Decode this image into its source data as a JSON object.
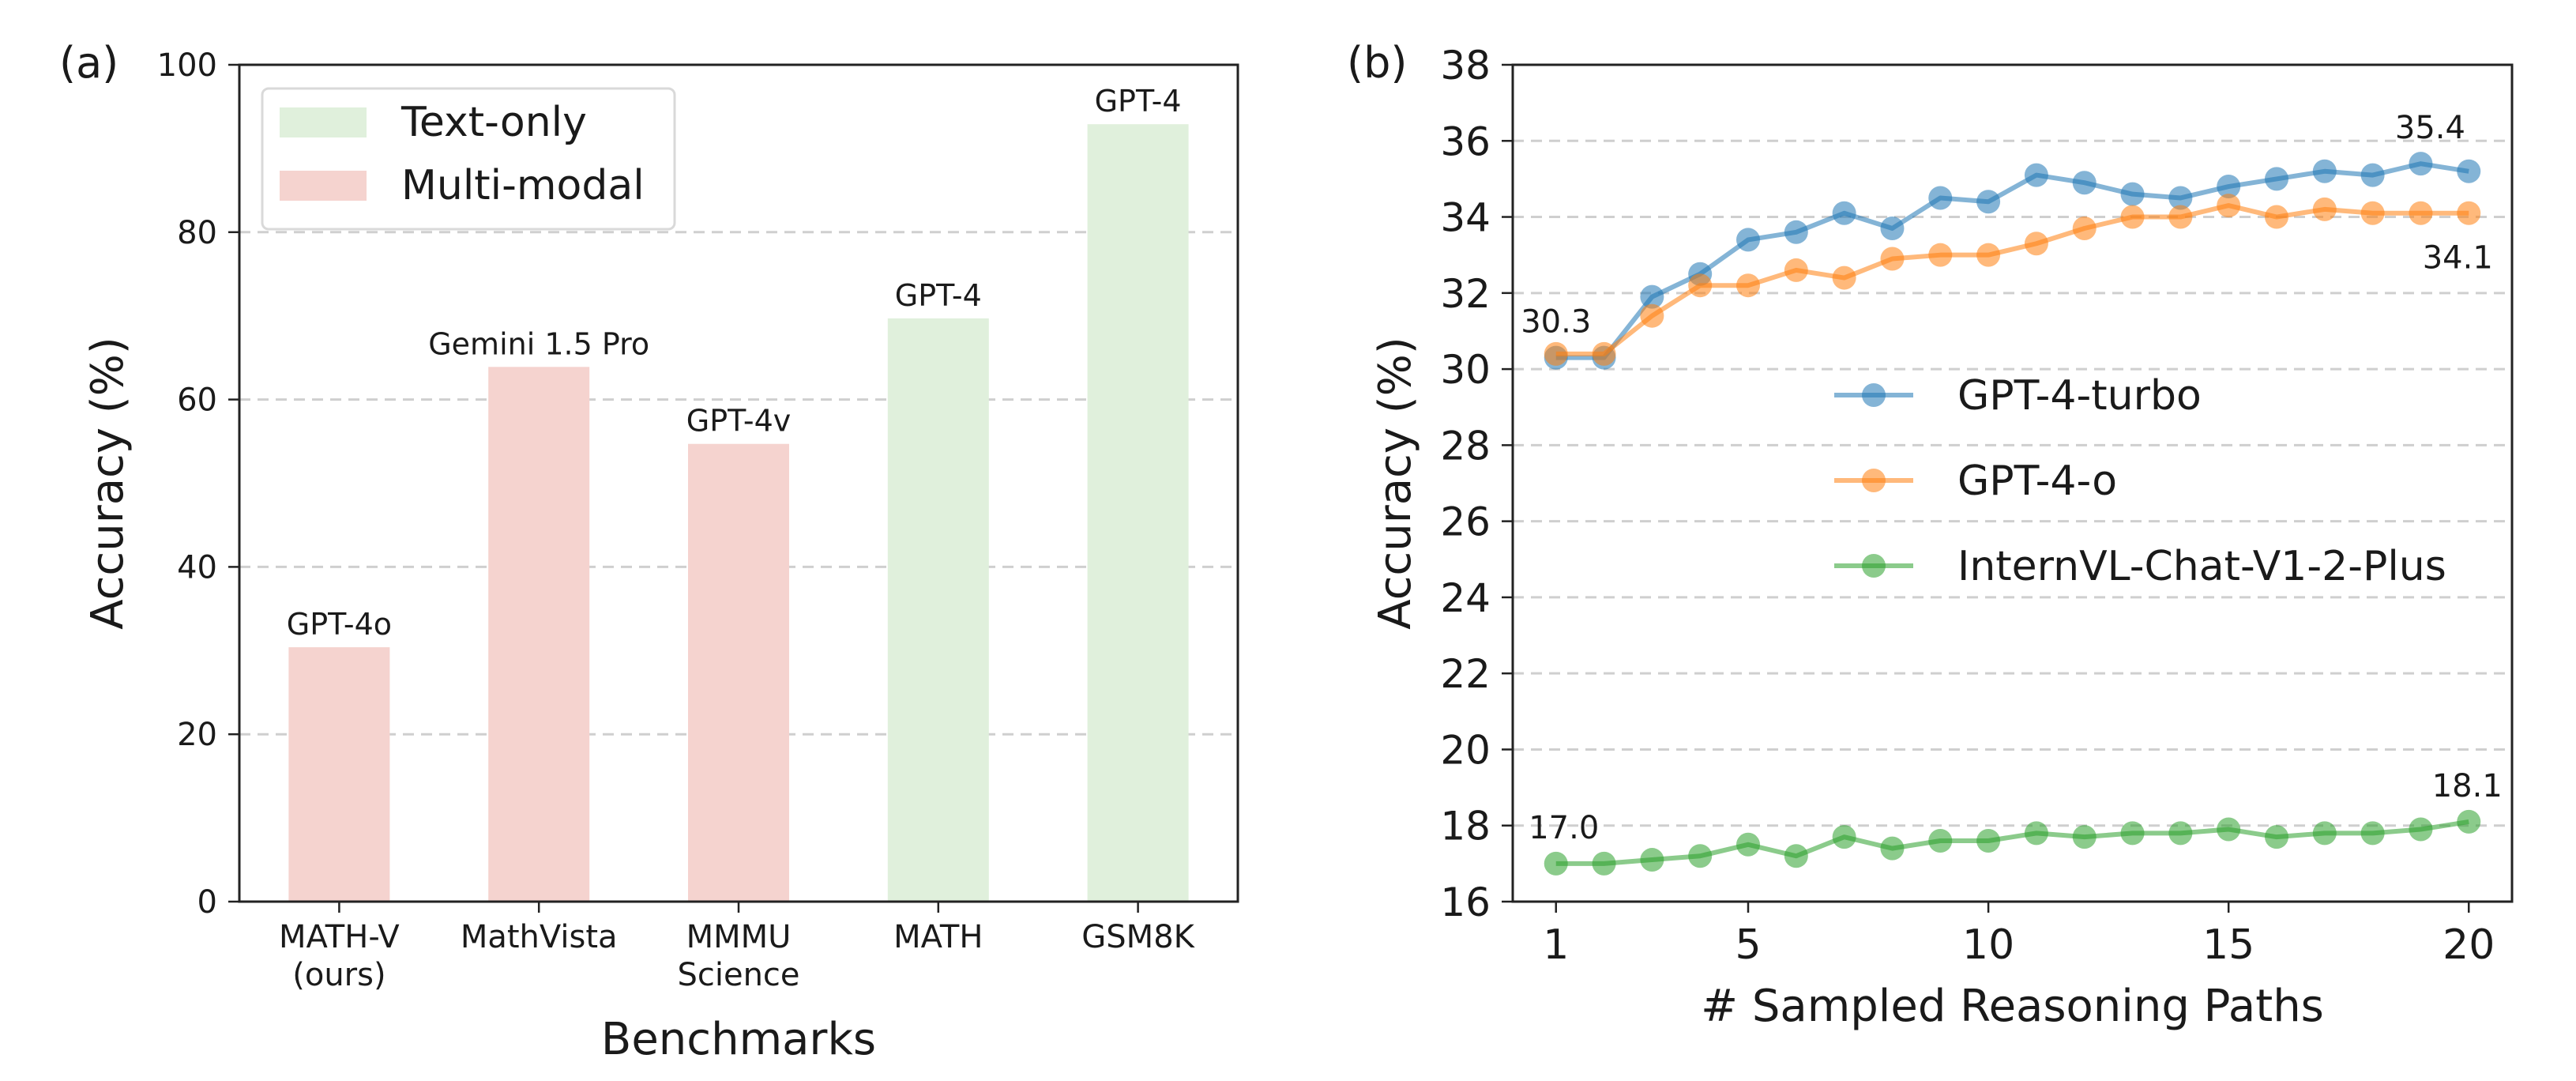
{
  "chart_data": [
    {
      "panel": "(a)",
      "type": "bar",
      "xlabel": "Benchmarks",
      "ylabel": "Accuracy (%)",
      "ylim": [
        0,
        100
      ],
      "yticks": [
        "0",
        "20",
        "40",
        "60",
        "80",
        "100"
      ],
      "grid": "horizontal dashed",
      "legend_position": "top-left",
      "legend": [
        {
          "label": "Text-only",
          "color": "#e0f0dc"
        },
        {
          "label": "Multi-modal",
          "color": "#f5d3cf"
        }
      ],
      "categories": [
        {
          "label": [
            "MATH-V",
            "(ours)"
          ],
          "value": 30.4,
          "group": "Multi-modal",
          "model": "GPT-4o"
        },
        {
          "label": [
            "MathVista"
          ],
          "value": 63.9,
          "group": "Multi-modal",
          "model": "Gemini 1.5 Pro"
        },
        {
          "label": [
            "MMMU",
            "Science"
          ],
          "value": 54.7,
          "group": "Multi-modal",
          "model": "GPT-4v"
        },
        {
          "label": [
            "MATH"
          ],
          "value": 69.7,
          "group": "Text-only",
          "model": "GPT-4"
        },
        {
          "label": [
            "GSM8K"
          ],
          "value": 92.9,
          "group": "Text-only",
          "model": "GPT-4"
        }
      ]
    },
    {
      "panel": "(b)",
      "type": "line",
      "xlabel": "# Sampled Reasoning Paths",
      "ylabel": "Accuracy (%)",
      "ylim": [
        16,
        38
      ],
      "xlim": [
        0.1,
        20.9
      ],
      "xticks": [
        "1",
        "5",
        "10",
        "15",
        "20"
      ],
      "yticks": [
        "16",
        "18",
        "20",
        "22",
        "24",
        "26",
        "28",
        "30",
        "32",
        "34",
        "36",
        "38"
      ],
      "grid": "horizontal dashed",
      "legend_position": "center",
      "x": [
        1,
        2,
        3,
        4,
        5,
        6,
        7,
        8,
        9,
        10,
        11,
        12,
        13,
        14,
        15,
        16,
        17,
        18,
        19,
        20
      ],
      "series": [
        {
          "name": "GPT-4-turbo",
          "color": "#1f77b4",
          "values": [
            30.3,
            30.3,
            31.9,
            32.5,
            33.4,
            33.6,
            34.1,
            33.7,
            34.5,
            34.4,
            35.1,
            34.9,
            34.6,
            34.5,
            34.8,
            35.0,
            35.2,
            35.1,
            35.4,
            35.2
          ]
        },
        {
          "name": "GPT-4-o",
          "color": "#ff7f0e",
          "values": [
            30.4,
            30.4,
            31.4,
            32.2,
            32.2,
            32.6,
            32.4,
            32.9,
            33.0,
            33.0,
            33.3,
            33.7,
            34.0,
            34.0,
            34.3,
            34.0,
            34.2,
            34.1,
            34.1,
            34.1
          ]
        },
        {
          "name": "InternVL-Chat-V1-2-Plus",
          "color": "#2ca02c",
          "values": [
            17.0,
            17.0,
            17.1,
            17.2,
            17.5,
            17.2,
            17.7,
            17.4,
            17.6,
            17.6,
            17.8,
            17.7,
            17.8,
            17.8,
            17.9,
            17.7,
            17.8,
            17.8,
            17.9,
            18.1
          ]
        }
      ],
      "annotations": [
        {
          "text": "30.3",
          "x": 1,
          "y": 30.3
        },
        {
          "text": "35.4",
          "x": 19,
          "y": 35.4
        },
        {
          "text": "34.1",
          "x": 20,
          "y": 34.1
        },
        {
          "text": "17.0",
          "x": 1,
          "y": 17.0
        },
        {
          "text": "18.1",
          "x": 20,
          "y": 18.1
        }
      ]
    }
  ]
}
